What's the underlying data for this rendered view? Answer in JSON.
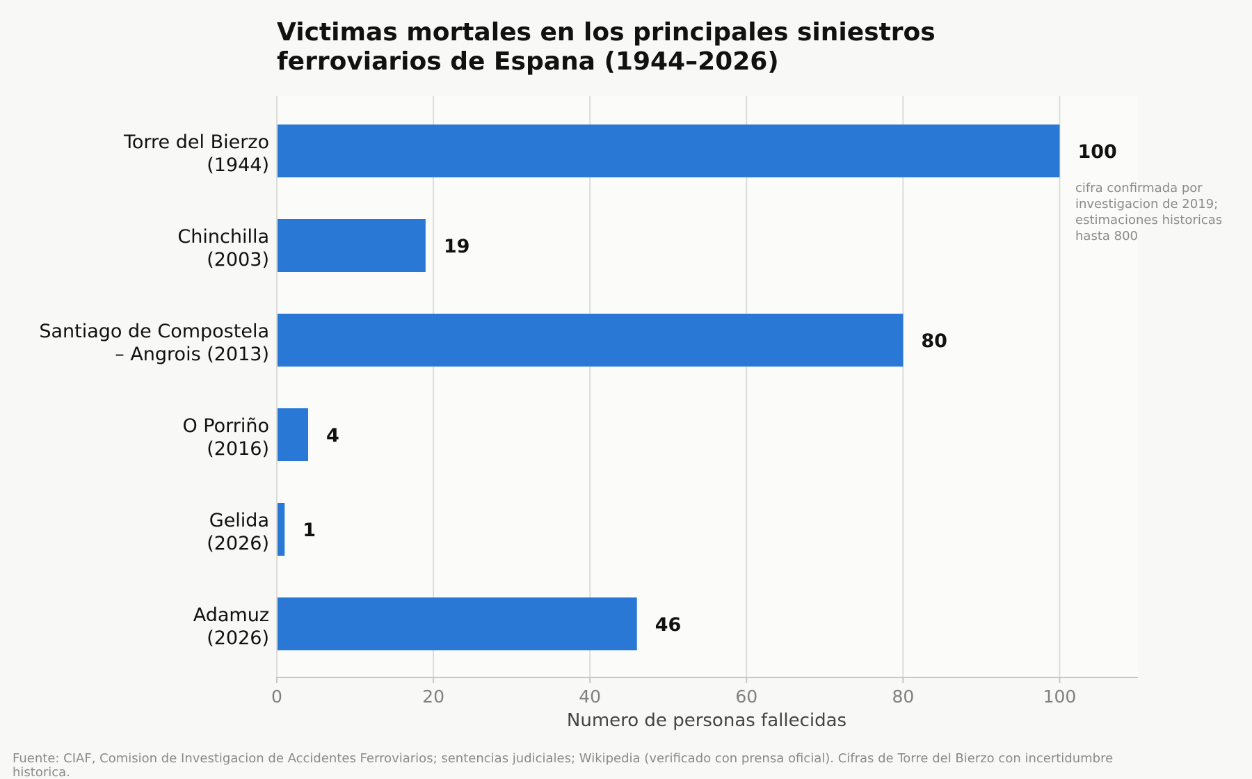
{
  "chart_data": {
    "type": "bar",
    "orientation": "horizontal",
    "title": [
      "Victimas mortales en los principales siniestros",
      "ferroviarios de Espana (1944–2026)"
    ],
    "categories": [
      [
        "Torre del Bierzo",
        "(1944)"
      ],
      [
        "Chinchilla",
        "(2003)"
      ],
      [
        "Santiago de Compostela",
        "– Angrois (2013)"
      ],
      [
        "O Porriño",
        "(2016)"
      ],
      [
        "Gelida",
        "(2026)"
      ],
      [
        "Adamuz",
        "(2026)"
      ]
    ],
    "values": [
      100,
      19,
      80,
      4,
      1,
      46
    ],
    "value_labels": [
      "100",
      "19",
      "80",
      "4",
      "1",
      "46"
    ],
    "xlabel": "Numero de personas fallecidas",
    "ylabel": "",
    "xlim": [
      0,
      110
    ],
    "xticks": [
      0,
      20,
      40,
      60,
      80,
      100
    ],
    "grid": "vertical",
    "bar_color": "#2a78d6",
    "grid_color": "#dcdcd8",
    "plot_background": "#fbfbf9",
    "annotation": [
      "cifra confirmada por",
      "investigacion de 2019;",
      "estimaciones historicas",
      "hasta 800"
    ],
    "source": [
      "Fuente: CIAF, Comision de Investigacion de Accidentes Ferroviarios; sentencias judiciales; Wikipedia (verificado con prensa oficial). Cifras de Torre del Bierzo con incertidumbre",
      "historica."
    ]
  }
}
